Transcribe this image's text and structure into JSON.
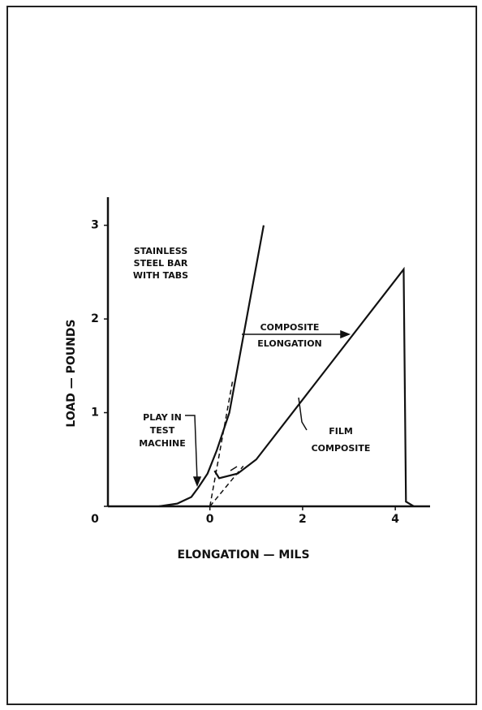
{
  "chart_data": {
    "type": "line",
    "x_label": "ELONGATION — MILS",
    "y_label": "LOAD — POUNDS",
    "xlim": [
      -2.2,
      4.75
    ],
    "ylim": [
      0,
      3.3
    ],
    "xticks": [
      0,
      2,
      4
    ],
    "yticks": [
      0,
      1,
      2,
      3
    ],
    "grid": false,
    "series": [
      {
        "color": "#111",
        "dash": false,
        "x": [
          -1.1,
          -0.7,
          -0.4,
          -0.25,
          -0.05,
          0.15,
          0.42,
          1.16
        ],
        "values": [
          0,
          0.03,
          0.1,
          0.2,
          0.35,
          0.6,
          1.0,
          3.0
        ]
      },
      {
        "color": "#111",
        "dash": false,
        "x": [
          0.1,
          0.2,
          0.6,
          1.0,
          4.18,
          4.23,
          4.4
        ],
        "values": [
          0.38,
          0.3,
          0.35,
          0.5,
          2.53,
          0.05,
          0
        ]
      },
      {
        "color": "#111",
        "dash": true,
        "x": [
          0,
          0.49
        ],
        "values": [
          0,
          1.34
        ]
      },
      {
        "color": "#111",
        "dash": true,
        "x": [
          0,
          0.72
        ],
        "values": [
          0,
          0.43
        ]
      }
    ],
    "annotations": [
      [
        "STAINLESS",
        "STEEL BAR",
        "WITH TABS"
      ],
      [
        "PLAY IN",
        "TEST",
        "MACHINE"
      ],
      [
        "FILM",
        "COMPOSITE"
      ],
      [
        "COMPOSITE",
        "ELONGATION"
      ]
    ]
  }
}
